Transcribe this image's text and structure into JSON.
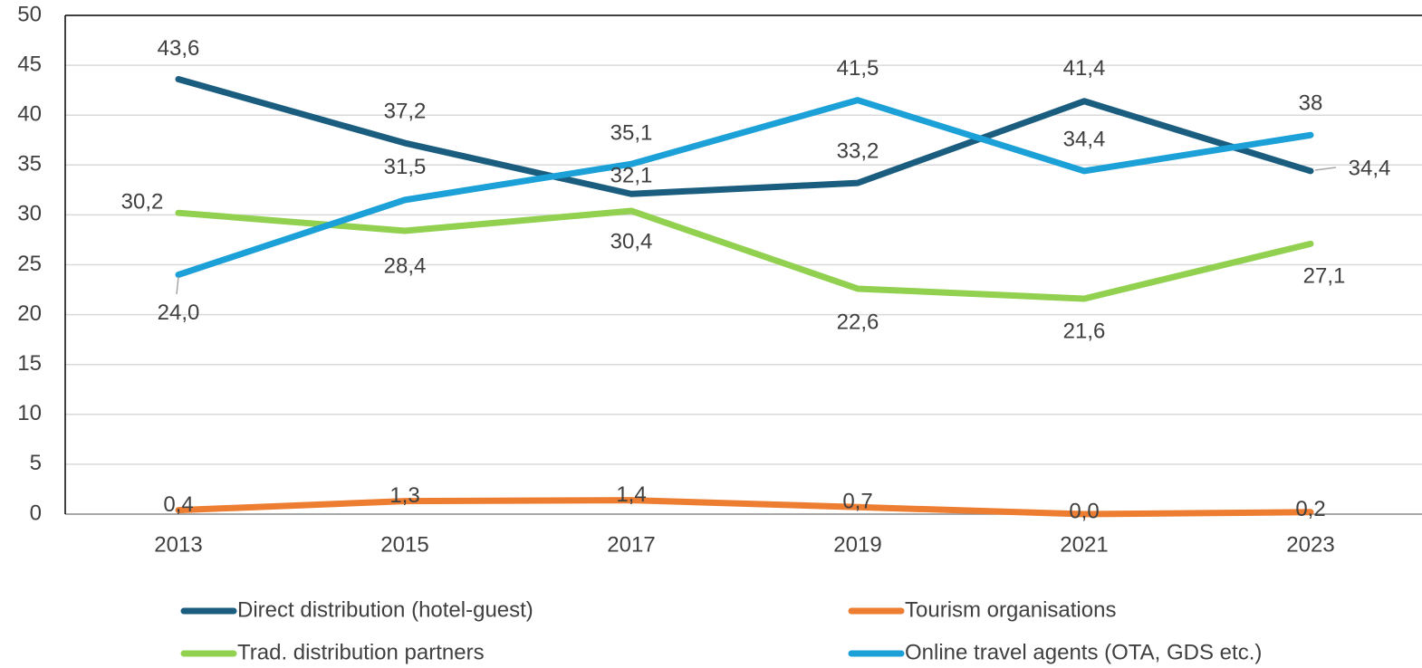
{
  "chart_data": {
    "type": "line",
    "categories": [
      "2013",
      "2015",
      "2017",
      "2019",
      "2021",
      "2023"
    ],
    "series": [
      {
        "name": "Direct distribution (hotel-guest)",
        "color": "#1b5d7e",
        "values": [
          43.6,
          37.2,
          32.1,
          33.2,
          41.4,
          34.4
        ],
        "value_labels": [
          "43,6",
          "37,2",
          "32,1",
          "33,2",
          "41,4",
          "34,4"
        ]
      },
      {
        "name": "Tourism organisations",
        "color": "#ed7d31",
        "values": [
          0.4,
          1.3,
          1.4,
          0.7,
          0.0,
          0.2
        ],
        "value_labels": [
          "0,4",
          "1,3",
          "1,4",
          "0,7",
          "0,0",
          "0,2"
        ]
      },
      {
        "name": "Trad. distribution partners",
        "color": "#92d050",
        "values": [
          30.2,
          28.4,
          30.4,
          22.6,
          21.6,
          27.1
        ],
        "value_labels": [
          "30,2",
          "28,4",
          "30,4",
          "22,6",
          "21,6",
          "27,1"
        ]
      },
      {
        "name": "Online travel agents (OTA, GDS etc.)",
        "color": "#1ba1d8",
        "values": [
          24.0,
          31.5,
          35.1,
          41.5,
          34.4,
          38
        ],
        "value_labels": [
          "24,0",
          "31,5",
          "35,1",
          "41,5",
          "34,4",
          "38"
        ]
      }
    ],
    "ylim": [
      0,
      50
    ],
    "yticks": [
      0,
      5,
      10,
      15,
      20,
      25,
      30,
      35,
      40,
      45,
      50
    ],
    "grid": true,
    "legend": "bottom"
  }
}
